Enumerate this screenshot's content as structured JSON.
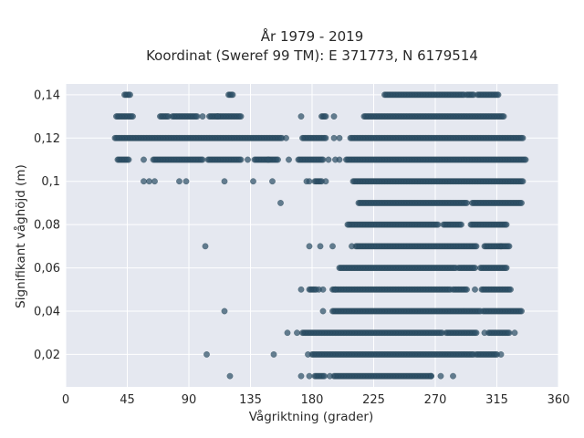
{
  "chart_data": {
    "type": "scatter",
    "title_lines": [
      "År 1979 - 2019",
      "Koordinat (Sweref 99 TM): E 371773, N 6179514"
    ],
    "xlabel": "Vågriktning (grader)",
    "ylabel": "Signifikant våghöjd (m)",
    "xlim": [
      0,
      360
    ],
    "ylim": [
      0.005,
      0.145
    ],
    "x_ticks": [
      0,
      45,
      90,
      135,
      180,
      225,
      270,
      315,
      360
    ],
    "x_tick_labels": [
      "0",
      "45",
      "90",
      "135",
      "180",
      "225",
      "270",
      "315",
      "360"
    ],
    "y_ticks": [
      0.02,
      0.04,
      0.06,
      0.08,
      0.1,
      0.12,
      0.14
    ],
    "y_tick_labels": [
      "0,02",
      "0,04",
      "0,06",
      "0,08",
      "0,1",
      "0,12",
      "0,14"
    ],
    "grid": true,
    "colors": {
      "plot_background": "#e5e8f0",
      "marker": "#2e5068"
    },
    "segments": [
      {
        "y": 0.14,
        "x0": 43,
        "x1": 47
      },
      {
        "y": 0.14,
        "x0": 119,
        "x1": 122
      },
      {
        "y": 0.14,
        "x0": 233,
        "x1": 291
      },
      {
        "y": 0.14,
        "x0": 293,
        "x1": 298
      },
      {
        "y": 0.14,
        "x0": 301,
        "x1": 312
      },
      {
        "y": 0.14,
        "x0": 313,
        "x1": 316
      },
      {
        "y": 0.13,
        "x0": 37,
        "x1": 49
      },
      {
        "y": 0.13,
        "x0": 69,
        "x1": 75
      },
      {
        "y": 0.13,
        "x0": 78,
        "x1": 96
      },
      {
        "y": 0.13,
        "x0": 105,
        "x1": 128
      },
      {
        "y": 0.13,
        "x0": 187,
        "x1": 190
      },
      {
        "y": 0.13,
        "x0": 218,
        "x1": 320
      },
      {
        "y": 0.12,
        "x0": 36,
        "x1": 158
      },
      {
        "y": 0.12,
        "x0": 173,
        "x1": 190
      },
      {
        "y": 0.12,
        "x0": 208,
        "x1": 334
      },
      {
        "y": 0.11,
        "x0": 38,
        "x1": 46
      },
      {
        "y": 0.11,
        "x0": 64,
        "x1": 100
      },
      {
        "y": 0.11,
        "x0": 104,
        "x1": 128
      },
      {
        "y": 0.11,
        "x0": 138,
        "x1": 155
      },
      {
        "y": 0.11,
        "x0": 170,
        "x1": 188
      },
      {
        "y": 0.11,
        "x0": 205,
        "x1": 336
      },
      {
        "y": 0.1,
        "x0": 182,
        "x1": 187
      },
      {
        "y": 0.1,
        "x0": 210,
        "x1": 334
      },
      {
        "y": 0.09,
        "x0": 214,
        "x1": 293
      },
      {
        "y": 0.09,
        "x0": 297,
        "x1": 333
      },
      {
        "y": 0.08,
        "x0": 207,
        "x1": 272
      },
      {
        "y": 0.08,
        "x0": 276,
        "x1": 289
      },
      {
        "y": 0.08,
        "x0": 296,
        "x1": 322
      },
      {
        "y": 0.07,
        "x0": 212,
        "x1": 300
      },
      {
        "y": 0.07,
        "x0": 306,
        "x1": 318
      },
      {
        "y": 0.07,
        "x0": 318,
        "x1": 324
      },
      {
        "y": 0.06,
        "x0": 200,
        "x1": 285
      },
      {
        "y": 0.06,
        "x0": 287,
        "x1": 293
      },
      {
        "y": 0.06,
        "x0": 294,
        "x1": 299
      },
      {
        "y": 0.06,
        "x0": 303,
        "x1": 322
      },
      {
        "y": 0.05,
        "x0": 178,
        "x1": 183
      },
      {
        "y": 0.05,
        "x0": 195,
        "x1": 281
      },
      {
        "y": 0.05,
        "x0": 283,
        "x1": 293
      },
      {
        "y": 0.05,
        "x0": 304,
        "x1": 325
      },
      {
        "y": 0.04,
        "x0": 195,
        "x1": 285
      },
      {
        "y": 0.04,
        "x0": 286,
        "x1": 302
      },
      {
        "y": 0.04,
        "x0": 305,
        "x1": 333
      },
      {
        "y": 0.03,
        "x0": 173,
        "x1": 275
      },
      {
        "y": 0.03,
        "x0": 278,
        "x1": 300
      },
      {
        "y": 0.03,
        "x0": 309,
        "x1": 324
      },
      {
        "y": 0.02,
        "x0": 180,
        "x1": 298
      },
      {
        "y": 0.02,
        "x0": 300,
        "x1": 315
      },
      {
        "y": 0.01,
        "x0": 196,
        "x1": 267
      },
      {
        "y": 0.01,
        "x0": 182,
        "x1": 189
      }
    ],
    "points": [
      [
        100,
        0.13
      ],
      [
        111,
        0.13
      ],
      [
        172,
        0.13
      ],
      [
        196,
        0.13
      ],
      [
        161,
        0.12
      ],
      [
        200,
        0.12
      ],
      [
        196,
        0.12
      ],
      [
        57,
        0.11
      ],
      [
        133,
        0.11
      ],
      [
        148,
        0.11
      ],
      [
        163,
        0.11
      ],
      [
        192,
        0.11
      ],
      [
        197,
        0.11
      ],
      [
        200,
        0.11
      ],
      [
        57,
        0.1
      ],
      [
        61,
        0.1
      ],
      [
        65,
        0.1
      ],
      [
        83,
        0.1
      ],
      [
        88,
        0.1
      ],
      [
        116,
        0.1
      ],
      [
        137,
        0.1
      ],
      [
        151,
        0.1
      ],
      [
        176,
        0.1
      ],
      [
        178,
        0.1
      ],
      [
        190,
        0.1
      ],
      [
        157,
        0.09
      ],
      [
        206,
        0.08
      ],
      [
        102,
        0.07
      ],
      [
        178,
        0.07
      ],
      [
        186,
        0.07
      ],
      [
        195,
        0.07
      ],
      [
        209,
        0.07
      ],
      [
        172,
        0.05
      ],
      [
        185,
        0.05
      ],
      [
        188,
        0.05
      ],
      [
        197,
        0.05
      ],
      [
        299,
        0.05
      ],
      [
        116,
        0.04
      ],
      [
        188,
        0.04
      ],
      [
        303,
        0.04
      ],
      [
        162,
        0.03
      ],
      [
        169,
        0.03
      ],
      [
        306,
        0.03
      ],
      [
        328,
        0.03
      ],
      [
        103,
        0.02
      ],
      [
        152,
        0.02
      ],
      [
        177,
        0.02
      ],
      [
        318,
        0.02
      ],
      [
        120,
        0.01
      ],
      [
        172,
        0.01
      ],
      [
        178,
        0.01
      ],
      [
        193,
        0.01
      ],
      [
        267,
        0.01
      ],
      [
        274,
        0.01
      ],
      [
        283,
        0.01
      ]
    ]
  }
}
